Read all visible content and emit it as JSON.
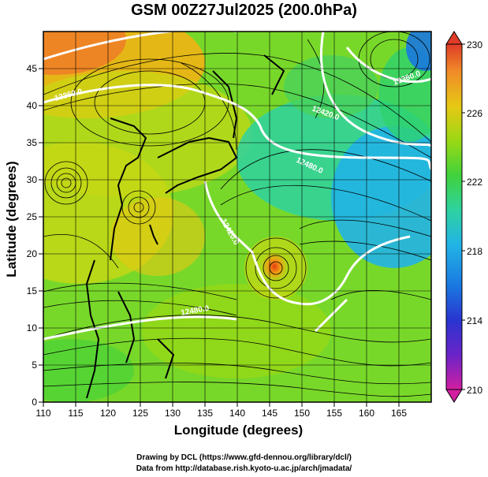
{
  "title": "GSM 00Z27Jul2025 (200.0hPa)",
  "xlabel": "Longitude (degrees)",
  "ylabel": "Latitude  (degrees)",
  "credits": {
    "line1": "Drawing by DCL (https://www.gfd-dennou.org/library/dcl/)",
    "line2": "Data from http://database.rish.kyoto-u.ac.jp/arch/jmadata/"
  },
  "map": {
    "lon_range": [
      110,
      170
    ],
    "lat_range": [
      0,
      50
    ],
    "lon_ticks": [
      "110",
      "115",
      "120",
      "125",
      "130",
      "135",
      "140",
      "145",
      "150",
      "155",
      "160",
      "165"
    ],
    "lat_ticks": [
      "0",
      "5",
      "10",
      "15",
      "20",
      "25",
      "30",
      "35",
      "40",
      "45"
    ],
    "contour_labels": [
      "12360.0",
      "12420.0",
      "12480.0",
      "12360.0",
      "12420.0",
      "12480.0"
    ],
    "colorbar": {
      "ticks": [
        "230",
        "226",
        "222",
        "218",
        "214",
        "210"
      ],
      "range": [
        210,
        230
      ],
      "colors": [
        "#d21ea0",
        "#3a2bd0",
        "#1a8ce6",
        "#28c8d8",
        "#2ed26e",
        "#7ada14",
        "#c8d814",
        "#f0b414",
        "#f07828",
        "#e03c28"
      ]
    }
  }
}
